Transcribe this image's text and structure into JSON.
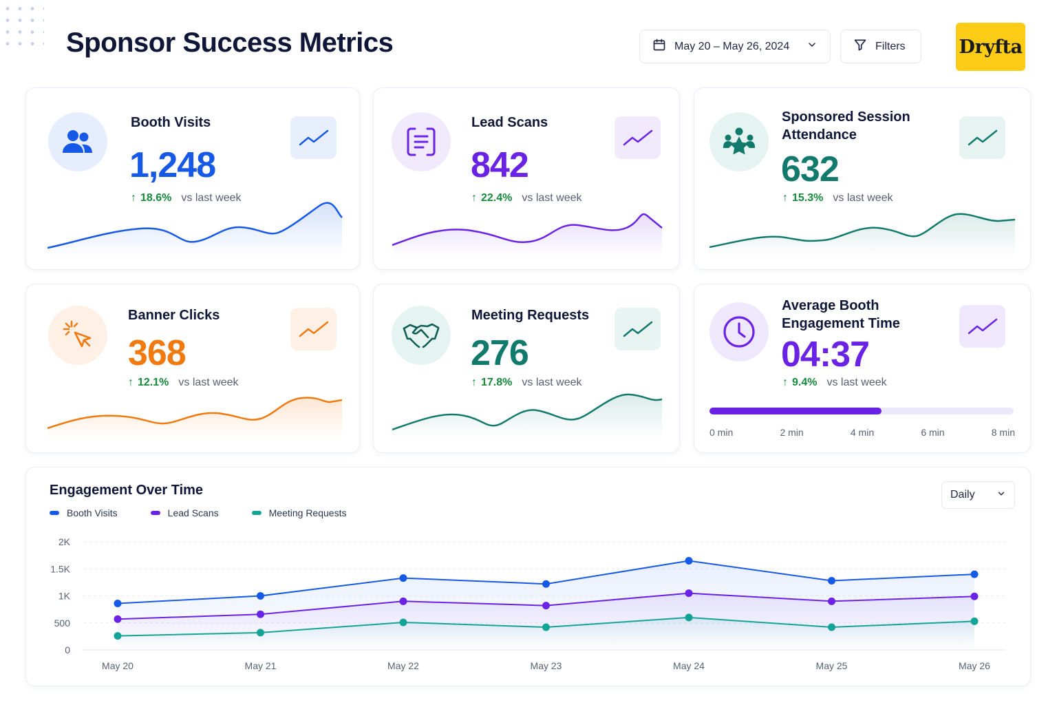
{
  "header": {
    "title": "Sponsor Success Metrics",
    "date_range": "May 20 – May 26, 2024",
    "filters_label": "Filters",
    "logo_text": "Dryfta"
  },
  "metrics": [
    {
      "title": "Booth Visits",
      "value": "1,248",
      "delta": "18.6%",
      "vs": "vs last week",
      "icon": "users-icon",
      "color": "#1659e6"
    },
    {
      "title": "Lead Scans",
      "value": "842",
      "delta": "22.4%",
      "vs": "vs last week",
      "icon": "scan-icon",
      "color": "#6a23e5"
    },
    {
      "title": "Sponsored Session Attendance",
      "value": "632",
      "delta": "15.3%",
      "vs": "vs last week",
      "icon": "audience-star-icon",
      "color": "#117a6d"
    },
    {
      "title": "Banner Clicks",
      "value": "368",
      "delta": "12.1%",
      "vs": "vs last week",
      "icon": "cursor-click-icon",
      "color": "#f07a10"
    },
    {
      "title": "Meeting Requests",
      "value": "276",
      "delta": "17.8%",
      "vs": "vs last week",
      "icon": "handshake-icon",
      "color": "#117a6d"
    },
    {
      "title": "Average Booth Engagement Time",
      "value": "04:37",
      "delta": "9.4%",
      "vs": "vs last week",
      "icon": "clock-icon",
      "color": "#6a23e5",
      "progress_fraction": 0.566,
      "progress_ticks": [
        "0 min",
        "2 min",
        "4 min",
        "6 min",
        "8 min"
      ]
    }
  ],
  "engagement_chart": {
    "title": "Engagement Over Time",
    "granularity": "Daily",
    "legend": [
      "Booth Visits",
      "Lead Scans",
      "Meeting Requests"
    ],
    "colors": [
      "#1659e6",
      "#6a23e5",
      "#14a497"
    ]
  },
  "chart_data": {
    "type": "line",
    "title": "Engagement Over Time",
    "categories": [
      "May 20",
      "May 21",
      "May 22",
      "May 23",
      "May 24",
      "May 25",
      "May 26"
    ],
    "series": [
      {
        "name": "Booth Visits",
        "values": [
          860,
          1000,
          1330,
          1220,
          1650,
          1280,
          1400
        ]
      },
      {
        "name": "Lead Scans",
        "values": [
          570,
          660,
          900,
          820,
          1050,
          900,
          990
        ]
      },
      {
        "name": "Meeting Requests",
        "values": [
          260,
          320,
          510,
          420,
          600,
          420,
          530
        ]
      }
    ],
    "yticks": [
      "0",
      "500",
      "1K",
      "1.5K",
      "2K"
    ],
    "ylim": [
      0,
      2000
    ],
    "grid": true,
    "legend_position": "top-left"
  }
}
